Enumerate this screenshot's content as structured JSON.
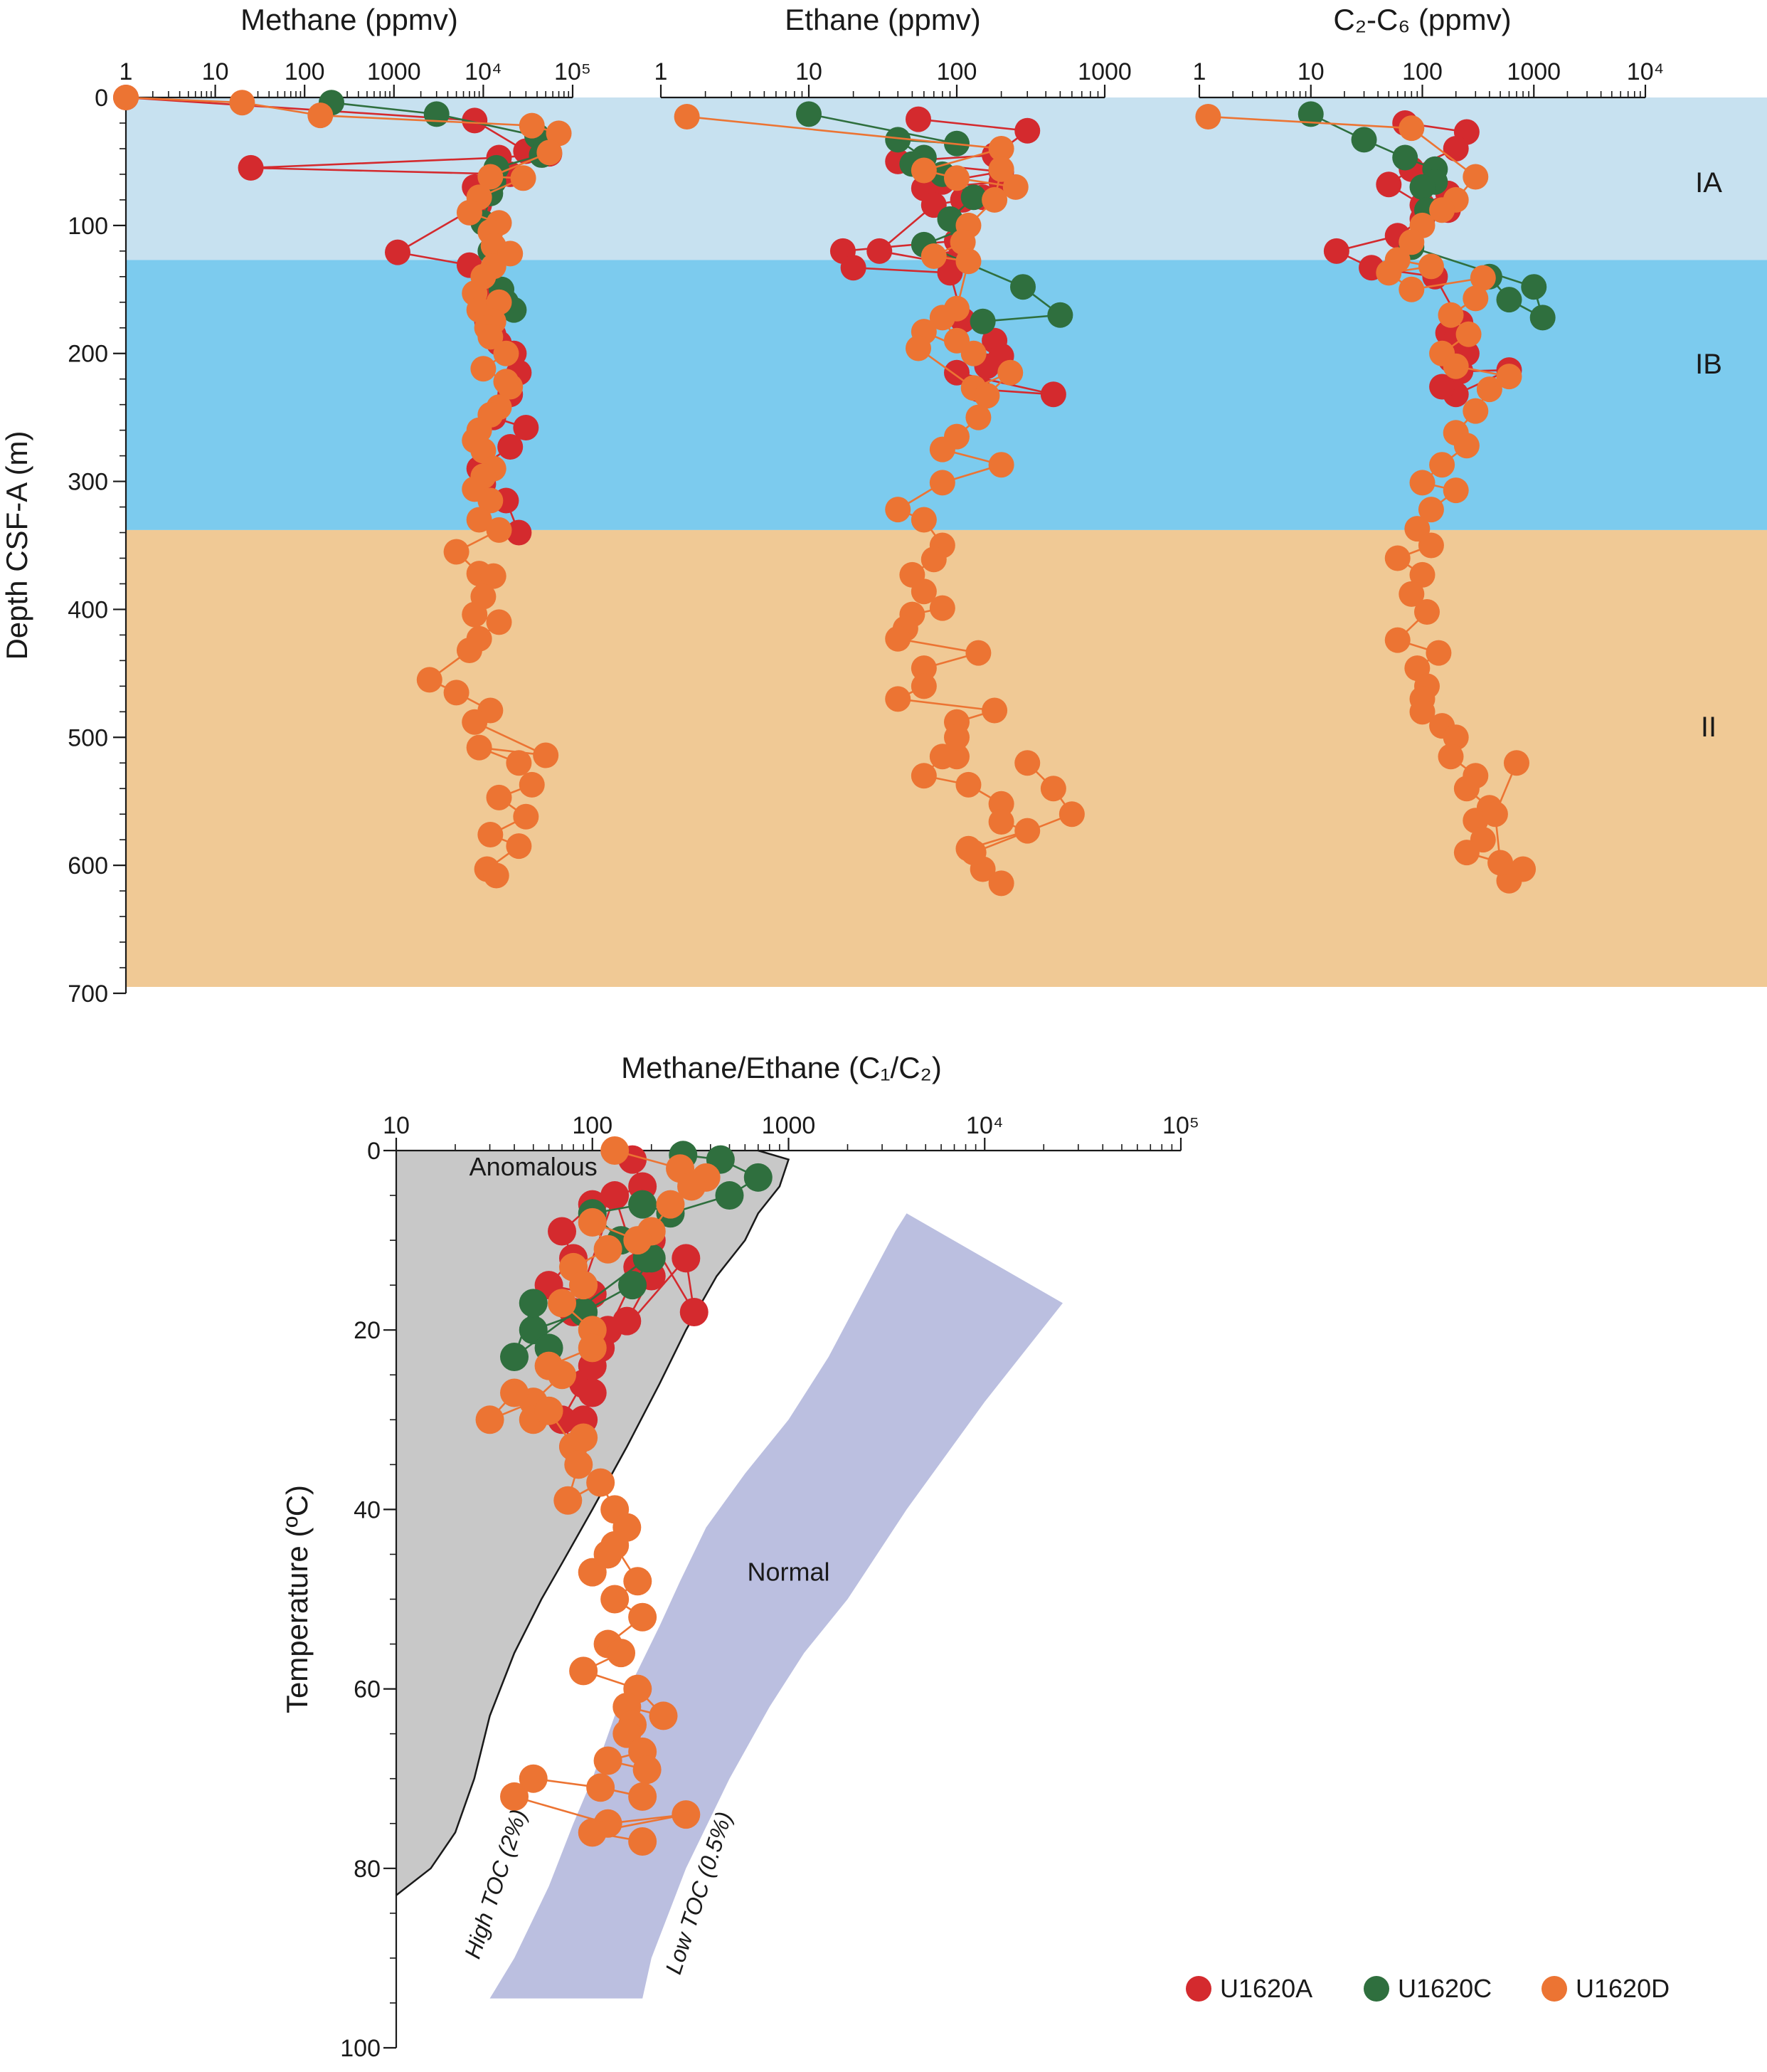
{
  "colors": {
    "U1620A": "#d42a2e",
    "U1620C": "#2f6f3e",
    "U1620D": "#ec7433",
    "IA": "#c7e1f0",
    "IB": "#7ccbee",
    "II": "#f0c995",
    "anomalous": "#c8c8c8",
    "normal": "#bbbfe0"
  },
  "shared": {
    "depth_axis_label": "Depth CSF-A (m)",
    "depth_ticks": [
      "0",
      "100",
      "200",
      "300",
      "400",
      "500",
      "600",
      "700"
    ],
    "unit_labels": [
      "IA",
      "IB",
      "II"
    ]
  },
  "legend": [
    "U1620A",
    "U1620C",
    "U1620D"
  ],
  "chart_data": [
    {
      "type": "scatter",
      "title": "Methane (ppmv)",
      "x_scale": "log",
      "xlim": [
        1,
        100000
      ],
      "x_ticks": [
        "1",
        "10",
        "100",
        "1000",
        "10⁴",
        "10⁵"
      ],
      "ylabel": "Depth CSF-A (m)",
      "ylim": [
        0,
        700
      ],
      "units": [
        {
          "name": "IA",
          "top": 0,
          "bottom": 127
        },
        {
          "name": "IB",
          "top": 127,
          "bottom": 338
        },
        {
          "name": "II",
          "top": 338,
          "bottom": 695
        }
      ],
      "series": [
        {
          "name": "U1620A",
          "x": [
            1,
            8000,
            30000,
            55000,
            15000,
            25,
            20000,
            8000,
            9000,
            9000,
            1100,
            7000,
            12000,
            11000,
            13000,
            15000,
            22000,
            25000,
            20000,
            13000,
            30000,
            20000,
            9000,
            10000,
            18000,
            25000
          ],
          "y": [
            0,
            18,
            42,
            44,
            47,
            55,
            60,
            70,
            72,
            84,
            121,
            131,
            157,
            175,
            185,
            192,
            200,
            215,
            232,
            250,
            258,
            273,
            290,
            302,
            315,
            340
          ]
        },
        {
          "name": "U1620C",
          "x": [
            200,
            3000,
            40000,
            45000,
            14000,
            13000,
            12000,
            10000,
            12000,
            16000,
            22000,
            18000
          ],
          "y": [
            4,
            13,
            30,
            45,
            55,
            66,
            75,
            98,
            120,
            150,
            166,
            160
          ]
        },
        {
          "name": "U1620D",
          "x": [
            1,
            20,
            150,
            35000,
            70000,
            55000,
            12000,
            28000,
            9000,
            7000,
            15000,
            12000,
            13000,
            20000,
            13000,
            10000,
            8000,
            9000,
            15000,
            13000,
            11000,
            12000,
            18000,
            10000,
            18000,
            20000,
            15000,
            12000,
            9000,
            8000,
            10000,
            13000,
            10000,
            8000,
            12000,
            9000,
            15000,
            5000,
            9000,
            13000,
            10000,
            8000,
            15000,
            9000,
            7000,
            2500,
            5000,
            12000,
            8000,
            50000,
            9000,
            25000,
            35000,
            15000,
            30000,
            12000,
            25000,
            11000,
            14000
          ],
          "y": [
            0,
            4,
            14,
            22,
            28,
            43,
            62,
            63,
            78,
            90,
            98,
            105,
            116,
            122,
            132,
            140,
            153,
            166,
            160,
            175,
            180,
            187,
            200,
            212,
            222,
            226,
            242,
            248,
            260,
            268,
            276,
            290,
            296,
            306,
            315,
            330,
            338,
            355,
            372,
            374,
            390,
            404,
            410,
            423,
            432,
            455,
            465,
            479,
            488,
            514,
            508,
            520,
            537,
            547,
            562,
            576,
            585,
            603,
            608
          ]
        }
      ]
    },
    {
      "type": "scatter",
      "title": "Ethane (ppmv)",
      "x_scale": "log",
      "xlim": [
        1,
        1000
      ],
      "x_ticks": [
        "1",
        "10",
        "100",
        "1000"
      ],
      "ylim": [
        0,
        700
      ],
      "series": [
        {
          "name": "U1620A",
          "x": [
            55,
            300,
            180,
            40,
            200,
            80,
            60,
            200,
            150,
            110,
            70,
            30,
            90,
            100,
            17,
            20,
            90,
            110,
            180,
            200,
            160,
            140,
            450,
            100
          ],
          "y": [
            17,
            26,
            45,
            50,
            58,
            66,
            71,
            66,
            78,
            80,
            84,
            120,
            130,
            112,
            120,
            133,
            137,
            174,
            190,
            202,
            210,
            228,
            232,
            215
          ]
        },
        {
          "name": "U1620C",
          "x": [
            10,
            100,
            40,
            60,
            50,
            80,
            130,
            90,
            110,
            60,
            280,
            500,
            150
          ],
          "y": [
            13,
            36,
            33,
            47,
            52,
            60,
            78,
            95,
            103,
            115,
            148,
            170,
            175
          ]
        },
        {
          "name": "U1620D",
          "x": [
            1.5,
            200,
            60,
            100,
            250,
            200,
            180,
            120,
            110,
            70,
            120,
            100,
            80,
            100,
            130,
            60,
            55,
            130,
            230,
            160,
            140,
            100,
            80,
            200,
            80,
            40,
            60,
            80,
            70,
            50,
            60,
            80,
            50,
            45,
            40,
            140,
            60,
            60,
            40,
            180,
            100,
            100,
            100,
            80,
            60,
            120,
            200,
            200,
            300,
            120,
            150,
            200,
            130,
            600,
            450,
            300
          ],
          "y": [
            15,
            40,
            57,
            63,
            70,
            56,
            80,
            100,
            113,
            124,
            128,
            165,
            172,
            190,
            200,
            183,
            196,
            227,
            215,
            233,
            250,
            265,
            275,
            287,
            301,
            322,
            330,
            350,
            361,
            373,
            386,
            399,
            404,
            415,
            423,
            434,
            446,
            460,
            470,
            479,
            488,
            515,
            500,
            515,
            530,
            537,
            552,
            566,
            573,
            587,
            603,
            614,
            590,
            560,
            540,
            520
          ]
        }
      ]
    },
    {
      "type": "scatter",
      "title": "C₂-C₆ (ppmv)",
      "x_scale": "log",
      "xlim": [
        1,
        10000
      ],
      "x_ticks": [
        "1",
        "10",
        "100",
        "1000",
        "10⁴"
      ],
      "ylim": [
        0,
        700
      ],
      "series": [
        {
          "name": "U1620A",
          "x": [
            70,
            250,
            200,
            80,
            50,
            100,
            170,
            170,
            100,
            60,
            17,
            35,
            130,
            220,
            170,
            200,
            250,
            180,
            220,
            600,
            200,
            150
          ],
          "y": [
            20,
            27,
            40,
            56,
            68,
            84,
            75,
            88,
            95,
            108,
            120,
            133,
            140,
            176,
            184,
            190,
            200,
            205,
            214,
            213,
            232,
            226
          ]
        },
        {
          "name": "U1620C",
          "x": [
            10,
            30,
            70,
            130,
            130,
            100,
            110,
            80,
            1000,
            1200,
            600,
            400
          ],
          "y": [
            13,
            33,
            47,
            56,
            66,
            70,
            88,
            117,
            148,
            172,
            158,
            140
          ]
        },
        {
          "name": "U1620D",
          "x": [
            1.2,
            80,
            300,
            200,
            150,
            100,
            80,
            60,
            120,
            50,
            80,
            350,
            300,
            180,
            260,
            150,
            200,
            600,
            400,
            300,
            200,
            250,
            150,
            100,
            200,
            120,
            90,
            120,
            60,
            100,
            80,
            110,
            60,
            140,
            90,
            110,
            100,
            100,
            150,
            200,
            180,
            300,
            250,
            400,
            300,
            350,
            250,
            800,
            600,
            500,
            450,
            700
          ],
          "y": [
            15,
            24,
            62,
            80,
            88,
            100,
            113,
            127,
            132,
            137,
            150,
            141,
            157,
            170,
            185,
            200,
            210,
            218,
            228,
            245,
            262,
            272,
            287,
            301,
            307,
            322,
            337,
            350,
            360,
            373,
            388,
            402,
            424,
            434,
            446,
            460,
            470,
            480,
            491,
            500,
            515,
            530,
            540,
            555,
            565,
            580,
            590,
            603,
            612,
            598,
            560,
            520
          ]
        }
      ]
    },
    {
      "type": "scatter",
      "title": "Methane/Ethane (C₁/C₂)",
      "x_scale": "log",
      "xlim": [
        10,
        100000
      ],
      "x_ticks": [
        "10",
        "100",
        "1000",
        "10⁴",
        "10⁵"
      ],
      "ylabel": "Temperature (ºC)",
      "ylim": [
        0,
        100
      ],
      "y_ticks": [
        "0",
        "20",
        "40",
        "60",
        "80",
        "100"
      ],
      "zones": [
        "Anomalous",
        "Normal"
      ],
      "annotations": [
        "High TOC (2%)",
        "Low TOC (0.5%)"
      ],
      "series": [
        {
          "name": "U1620A",
          "x": [
            160,
            180,
            100,
            70,
            80,
            60,
            100,
            90,
            130,
            170,
            200,
            150,
            120,
            80,
            110,
            90,
            200,
            330,
            300,
            100,
            70,
            80,
            100,
            90
          ],
          "y": [
            1,
            4,
            6,
            9,
            12,
            15,
            16,
            15,
            5,
            13,
            14,
            19,
            20,
            18,
            22,
            26,
            10,
            18,
            12,
            24,
            30,
            33,
            27,
            30
          ]
        },
        {
          "name": "U1620C",
          "x": [
            290,
            450,
            700,
            500,
            250,
            180,
            100,
            140,
            200,
            160,
            90,
            50,
            60,
            50,
            40,
            190
          ],
          "y": [
            0.5,
            1,
            3,
            5,
            7,
            6,
            7,
            10,
            12,
            15,
            18,
            20,
            22,
            17,
            23,
            12
          ]
        },
        {
          "name": "U1620D",
          "x": [
            130,
            280,
            380,
            320,
            250,
            200,
            170,
            100,
            120,
            80,
            90,
            70,
            100,
            100,
            60,
            70,
            50,
            30,
            40,
            50,
            60,
            80,
            90,
            85,
            75,
            110,
            130,
            150,
            120,
            100,
            130,
            170,
            130,
            180,
            120,
            140,
            90,
            170,
            230,
            150,
            160,
            150,
            180,
            120,
            190,
            180,
            110,
            50,
            40,
            120,
            300,
            100,
            180
          ],
          "y": [
            0,
            2,
            3,
            4,
            6,
            9,
            10,
            8,
            11,
            13,
            15,
            17,
            20,
            22,
            24,
            25,
            28,
            30,
            27,
            30,
            29,
            33,
            32,
            35,
            39,
            37,
            40,
            42,
            45,
            47,
            44,
            48,
            50,
            52,
            55,
            56,
            58,
            60,
            63,
            62,
            64,
            65,
            67,
            68,
            69,
            72,
            71,
            70,
            72,
            75,
            74,
            76,
            77
          ]
        }
      ]
    }
  ]
}
